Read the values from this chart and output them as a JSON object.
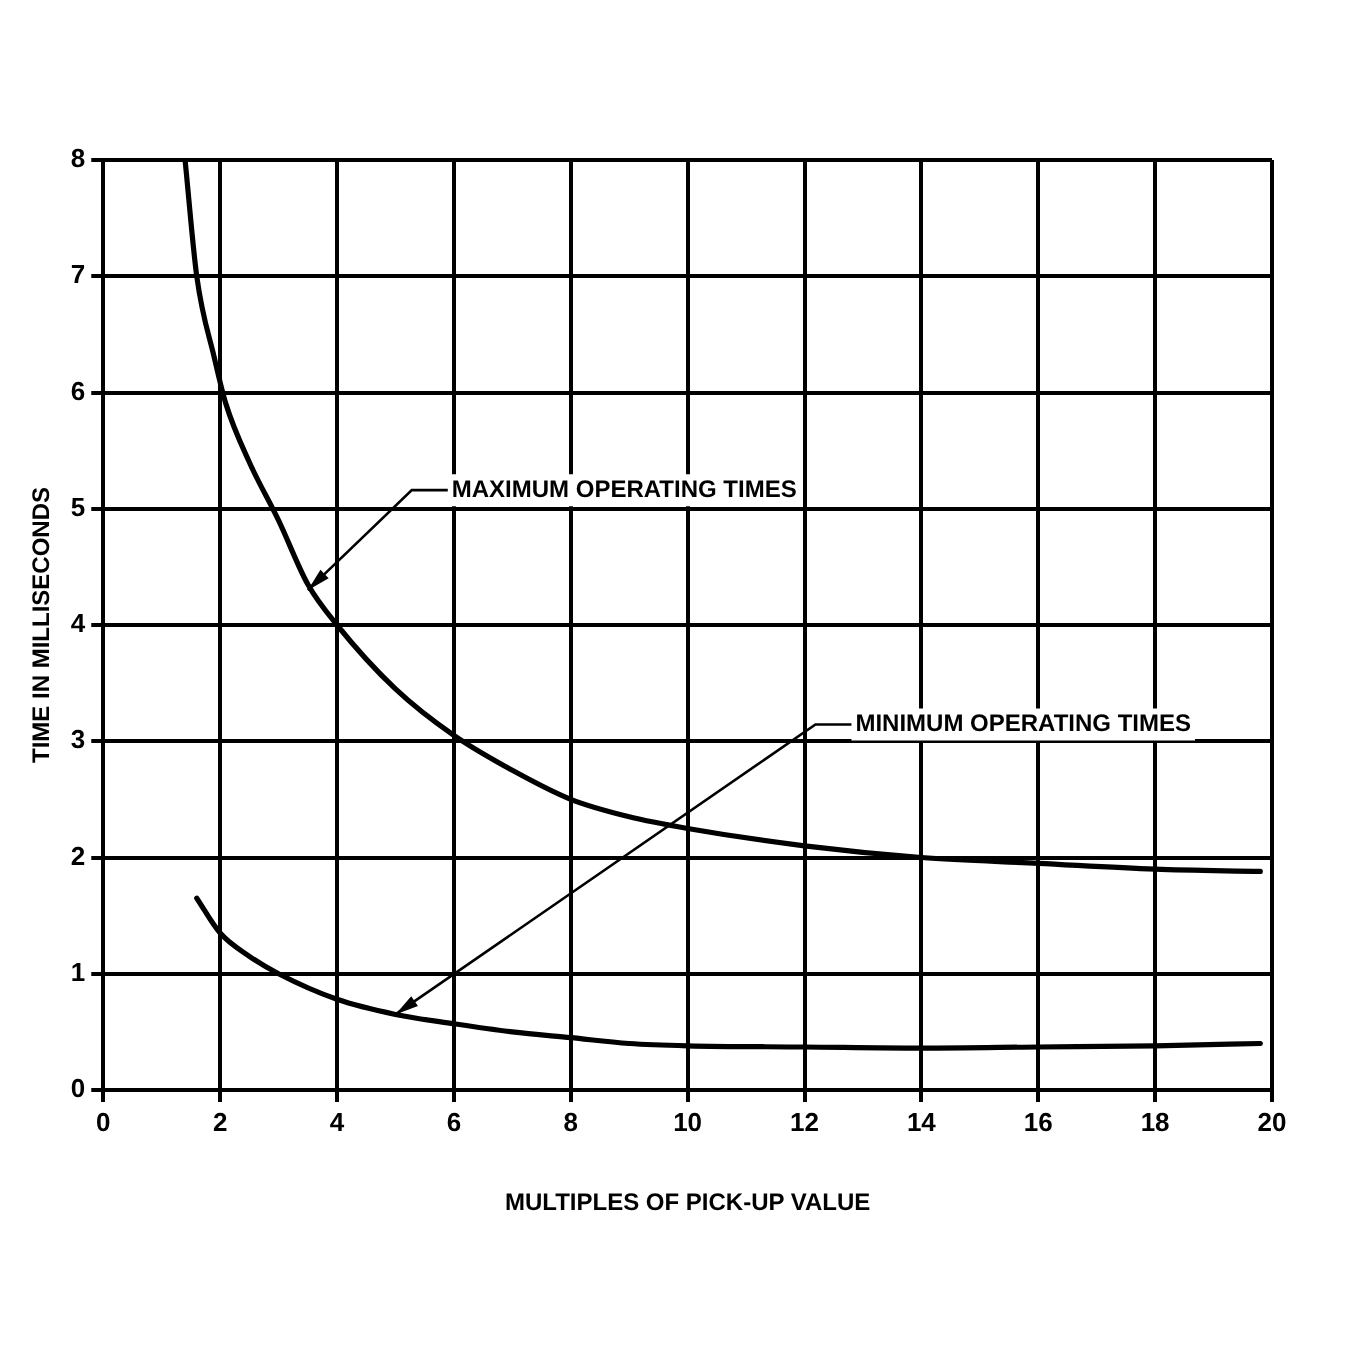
{
  "chart_data": {
    "type": "line",
    "xlabel": "MULTIPLES OF PICK-UP VALUE",
    "ylabel": "TIME IN MILLISECONDS",
    "xlim": [
      0,
      20
    ],
    "xticks": [
      0,
      2,
      4,
      6,
      8,
      10,
      12,
      14,
      16,
      18,
      20
    ],
    "ylim": [
      0,
      8
    ],
    "yticks": [
      0,
      1,
      2,
      3,
      4,
      5,
      6,
      7,
      8
    ],
    "grid": true,
    "legend": false,
    "marker": "none",
    "line_style": "solid",
    "series": [
      {
        "color": "#000000",
        "x": [
          1.4,
          1.6,
          1.9,
          2.1,
          2.5,
          3,
          3.5,
          4,
          5,
          6,
          7,
          8,
          9,
          10,
          12,
          14,
          16,
          18,
          19.8
        ],
        "values": [
          8,
          7,
          6.3,
          5.9,
          5.4,
          4.9,
          4.35,
          4,
          3.45,
          3.05,
          2.75,
          2.5,
          2.35,
          2.25,
          2.1,
          2.0,
          1.95,
          1.9,
          1.88
        ]
      },
      {
        "color": "#000000",
        "x": [
          1.6,
          2,
          2.5,
          3,
          4,
          5,
          6,
          7,
          8,
          9,
          10,
          12,
          14,
          16,
          18,
          19.8
        ],
        "values": [
          1.65,
          1.35,
          1.15,
          1.0,
          0.78,
          0.65,
          0.57,
          0.5,
          0.45,
          0.4,
          0.38,
          0.37,
          0.36,
          0.37,
          0.38,
          0.4
        ]
      }
    ],
    "annotations": [
      {
        "text": "MAXIMUM OPERATING TIMES",
        "x": 3.5,
        "y": 4.3
      },
      {
        "text": "MINIMUM OPERATING TIMES",
        "x": 5,
        "y": 0.65
      }
    ]
  }
}
